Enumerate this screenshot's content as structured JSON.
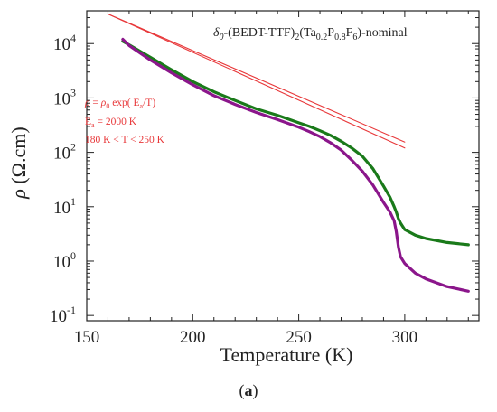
{
  "chart_data": {
    "type": "line",
    "title": "δ0-(BEDT-TTF)2(Ta0.2P0.8F6)-nominal",
    "title_parts": {
      "delta": "δ",
      "sub0": "0",
      "part1": "-(BEDT-TTF)",
      "sub1": "2",
      "part2": "(Ta",
      "sub2": "0.2",
      "part3": "P",
      "sub3": "0.8",
      "part4": "F",
      "sub4": "6",
      "part5": ")-nominal"
    },
    "xlabel": "Temperature (K)",
    "ylabel": "ρ (Ω.cm)",
    "ylabel_parts": {
      "rho": "ρ",
      "units": " (Ω.cm)"
    },
    "xlim": [
      150,
      335
    ],
    "ylim": [
      0.08,
      40000
    ],
    "yscale": "log",
    "x_ticks": [
      150,
      200,
      250,
      300
    ],
    "x_tick_labels": [
      "150",
      "200",
      "250",
      "300"
    ],
    "y_ticks": [
      0.1,
      1,
      10,
      100,
      1000,
      10000
    ],
    "y_tick_labels": [
      {
        "base": "10",
        "exp": "-1"
      },
      {
        "base": "10",
        "exp": "0"
      },
      {
        "base": "10",
        "exp": "1"
      },
      {
        "base": "10",
        "exp": "2"
      },
      {
        "base": "10",
        "exp": "3"
      },
      {
        "base": "10",
        "exp": "4"
      }
    ],
    "grid": false,
    "legend": "none",
    "annotation": {
      "line1": {
        "rho": "ρ",
        "eq": " = ",
        "rho0": "ρ",
        "sub0": "0",
        "exp": " exp( E",
        "suba": "a",
        "tail": "/T)"
      },
      "line2": {
        "E": "E",
        "sub": "a",
        "rest": " =  2000 K"
      },
      "line3": "180 K < T < 250 K"
    },
    "series": [
      {
        "color": "#1a7a1a",
        "x": [
          167,
          170,
          180,
          190,
          200,
          210,
          220,
          230,
          240,
          250,
          255,
          260,
          265,
          270,
          275,
          280,
          285,
          290,
          293,
          295,
          296,
          297,
          298,
          300,
          305,
          310,
          320,
          330
        ],
        "y": [
          11000,
          9500,
          5600,
          3300,
          2000,
          1300,
          900,
          630,
          480,
          350,
          300,
          250,
          205,
          160,
          120,
          85,
          50,
          24,
          15,
          10,
          8,
          6,
          5,
          3.8,
          3.0,
          2.6,
          2.2,
          2.0
        ]
      },
      {
        "color": "#8b168b",
        "x": [
          167,
          170,
          180,
          190,
          200,
          210,
          220,
          230,
          240,
          250,
          255,
          260,
          265,
          270,
          275,
          280,
          285,
          290,
          293,
          295,
          296,
          297,
          298,
          300,
          305,
          310,
          320,
          330
        ],
        "y": [
          12000,
          9200,
          5000,
          2900,
          1750,
          1100,
          760,
          540,
          400,
          290,
          240,
          195,
          150,
          110,
          72,
          45,
          25,
          12,
          8,
          5.5,
          3.5,
          1.8,
          1.2,
          0.9,
          0.6,
          0.47,
          0.34,
          0.28
        ]
      },
      {
        "color": "#e8383a",
        "x": [
          160,
          300
        ],
        "y": [
          35000,
          155
        ]
      },
      {
        "color": "#e8383a",
        "x": [
          160,
          300
        ],
        "y": [
          35000,
          120
        ]
      }
    ]
  },
  "panel_label": {
    "open": "(",
    "letter": "a",
    "close": ")"
  }
}
